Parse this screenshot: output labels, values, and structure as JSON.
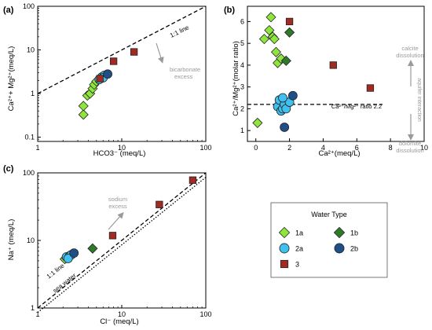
{
  "colors": {
    "1a": "#8ee63c",
    "1b": "#2f7a2a",
    "2a": "#40c0ee",
    "2b": "#1f4f86",
    "3": "#a12a22",
    "annotation": "#9a9a9a"
  },
  "legend": {
    "title": "Water Type",
    "items": [
      {
        "key": "1a",
        "label": "1a",
        "marker": "diamond"
      },
      {
        "key": "1b",
        "label": "1b",
        "marker": "diamond"
      },
      {
        "key": "2a",
        "label": "2a",
        "marker": "circle"
      },
      {
        "key": "2b",
        "label": "2b",
        "marker": "circle"
      },
      {
        "key": "3",
        "label": "3",
        "marker": "square"
      }
    ]
  },
  "chart_data": [
    {
      "id": "a",
      "panel_label": "(a)",
      "type": "scatter",
      "xscale": "log",
      "yscale": "log",
      "xlim": [
        1,
        100
      ],
      "ylim": [
        0.08,
        100
      ],
      "xticks": [
        1,
        10,
        100
      ],
      "xtick_labels": [
        "1",
        "10",
        "100"
      ],
      "yticks": [
        0.1,
        1,
        10,
        100
      ],
      "ytick_labels": [
        "0.1",
        "1",
        "10",
        "100"
      ],
      "xlabel": "HCO3⁻ (meq/L)",
      "ylabel": "Ca²⁺+ Mg²⁺(meq/L)",
      "lines": [
        {
          "label": "1:1 line",
          "style": "dashed",
          "points": [
            [
              1,
              1
            ],
            [
              100,
              100
            ]
          ]
        }
      ],
      "annotations": [
        {
          "text": "bicarbonate",
          "text2": "excess"
        }
      ],
      "series": [
        {
          "key": "1a",
          "points": [
            [
              3.5,
              0.33
            ],
            [
              3.5,
              0.52
            ],
            [
              3.9,
              0.9
            ],
            [
              4.2,
              1.0
            ],
            [
              4.5,
              1.3
            ],
            [
              4.7,
              1.6
            ],
            [
              5.0,
              1.9
            ]
          ]
        },
        {
          "key": "2a",
          "points": [
            [
              5.4,
              2.1
            ],
            [
              5.8,
              2.4
            ],
            [
              6.2,
              2.6
            ],
            [
              6.0,
              2.3
            ]
          ]
        },
        {
          "key": "2b",
          "points": [
            [
              6.8,
              2.8
            ]
          ]
        },
        {
          "key": "3",
          "points": [
            [
              5.5,
              2.2
            ],
            [
              8.0,
              5.5
            ],
            [
              14.0,
              9.0
            ]
          ]
        }
      ]
    },
    {
      "id": "b",
      "panel_label": "(b)",
      "type": "scatter",
      "xlim": [
        -0.5,
        10
      ],
      "ylim": [
        0.5,
        6.7
      ],
      "xticks": [
        0,
        2,
        4,
        6,
        8,
        10
      ],
      "xtick_labels": [
        "0",
        "2",
        "4",
        "6",
        "8",
        "10"
      ],
      "yticks": [
        1,
        2,
        3,
        4,
        5,
        6
      ],
      "ytick_labels": [
        "1",
        "2",
        "3",
        "4",
        "5",
        "6"
      ],
      "xlabel": "Ca²⁺(meq/L)",
      "ylabel": "Ca²⁺/Mg²⁺(molar ratio)",
      "hline": {
        "y": 2.2,
        "label": "Ca²⁺/Mg²⁺ ratio 2.2"
      },
      "annotations": [
        {
          "text": "calcite",
          "text2": "dissolution"
        },
        {
          "text": "aquifer interaction"
        },
        {
          "text": "dolomite",
          "text2": "dissolution"
        }
      ],
      "series": [
        {
          "key": "1a",
          "points": [
            [
              0.1,
              1.35
            ],
            [
              0.5,
              5.2
            ],
            [
              0.8,
              5.6
            ],
            [
              0.9,
              6.2
            ],
            [
              1.0,
              5.3
            ],
            [
              1.2,
              4.6
            ],
            [
              1.3,
              4.1
            ],
            [
              1.5,
              4.3
            ],
            [
              1.1,
              5.2
            ]
          ]
        },
        {
          "key": "1b",
          "points": [
            [
              1.8,
              4.2
            ],
            [
              2.0,
              5.5
            ]
          ]
        },
        {
          "key": "2a",
          "points": [
            [
              1.3,
              2.1
            ],
            [
              1.4,
              2.4
            ],
            [
              1.5,
              1.9
            ],
            [
              1.6,
              2.0
            ],
            [
              1.7,
              2.2
            ],
            [
              1.8,
              2.0
            ],
            [
              2.0,
              2.3
            ],
            [
              1.6,
              2.5
            ]
          ]
        },
        {
          "key": "2b",
          "points": [
            [
              1.7,
              1.15
            ],
            [
              2.2,
              2.6
            ]
          ]
        },
        {
          "key": "3",
          "points": [
            [
              2.0,
              6.0
            ],
            [
              4.6,
              4.0
            ],
            [
              6.8,
              2.95
            ]
          ]
        }
      ]
    },
    {
      "id": "c",
      "panel_label": "(c)",
      "type": "scatter",
      "xscale": "log",
      "yscale": "log",
      "xlim": [
        1,
        100
      ],
      "ylim": [
        1,
        100
      ],
      "xticks": [
        1,
        10,
        100
      ],
      "xtick_labels": [
        "1",
        "10",
        "100"
      ],
      "yticks": [
        1,
        10,
        100
      ],
      "ytick_labels": [
        "1",
        "10",
        "100"
      ],
      "xlabel": "Cl⁻ (meq/L)",
      "ylabel": "Na⁺ (meq/L)",
      "lines": [
        {
          "label": "1:1 line",
          "style": "dashed",
          "points": [
            [
              1,
              1
            ],
            [
              100,
              100
            ]
          ]
        },
        {
          "label": "sea water",
          "style": "dotted",
          "points": [
            [
              1,
              0.86
            ],
            [
              100,
              86
            ]
          ]
        }
      ],
      "annotations": [
        {
          "text": "sodium",
          "text2": "excess"
        }
      ],
      "series": [
        {
          "key": "1a",
          "points": [
            [
              2.1,
              5.3
            ],
            [
              2.2,
              5.5
            ],
            [
              2.3,
              5.6
            ]
          ]
        },
        {
          "key": "1b",
          "points": [
            [
              4.5,
              7.6
            ]
          ]
        },
        {
          "key": "2a",
          "points": [
            [
              2.2,
              5.7
            ],
            [
              2.4,
              5.9
            ],
            [
              2.5,
              6.1
            ],
            [
              2.3,
              5.4
            ]
          ]
        },
        {
          "key": "2b",
          "points": [
            [
              2.7,
              6.5
            ]
          ]
        },
        {
          "key": "3",
          "points": [
            [
              7.8,
              11.8
            ],
            [
              28.0,
              34.0
            ],
            [
              70.0,
              78.0
            ]
          ]
        }
      ]
    }
  ]
}
